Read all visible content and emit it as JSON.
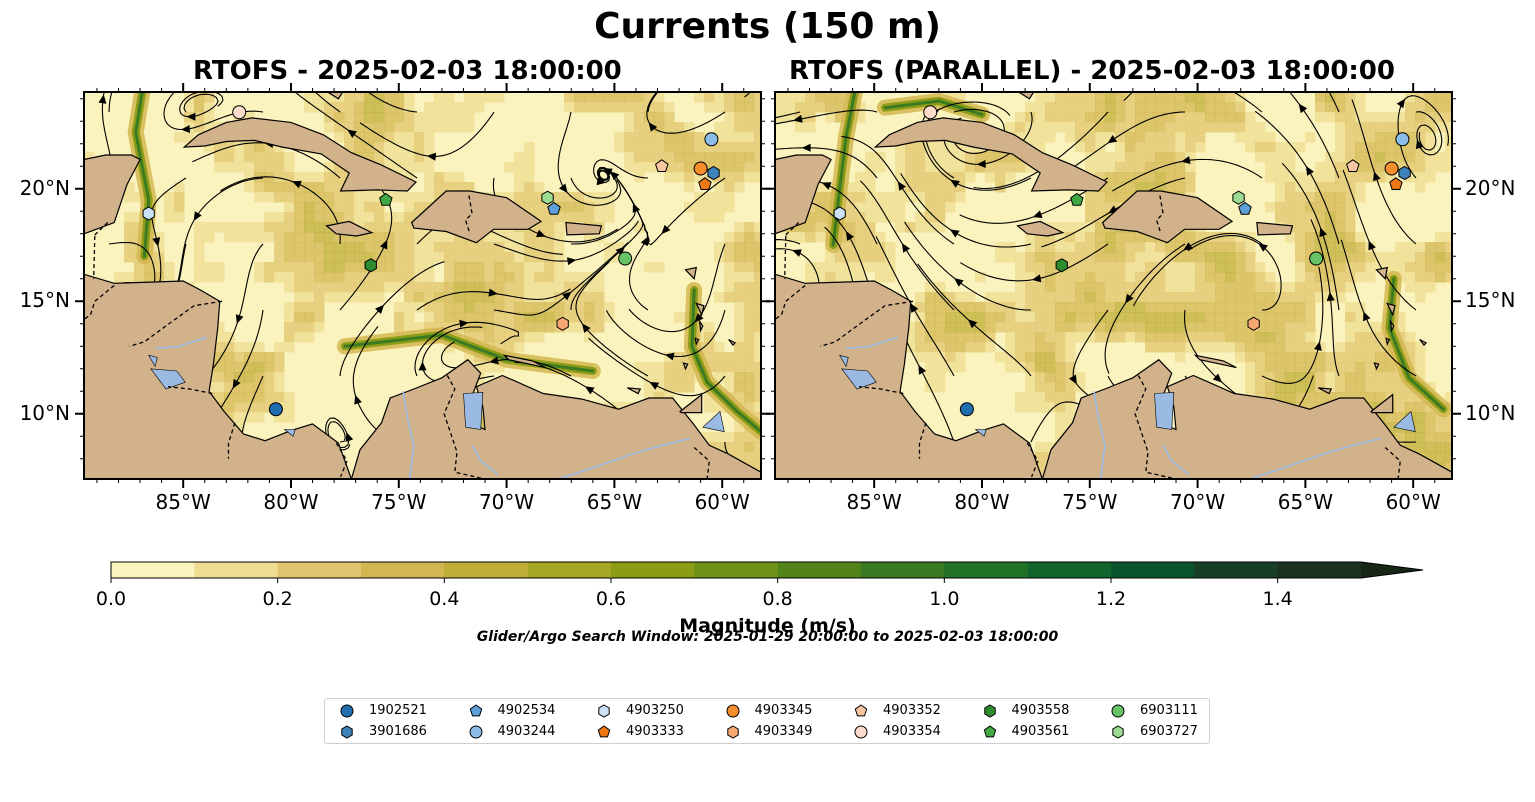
{
  "title": "Currents (150 m)",
  "panels": [
    {
      "subtitle": "RTOFS - 2025-02-03 18:00:00"
    },
    {
      "subtitle": "RTOFS (PARALLEL) - 2025-02-03 18:00:00"
    }
  ],
  "lon_ticks": [
    "85°W",
    "80°W",
    "75°W",
    "70°W",
    "65°W",
    "60°W"
  ],
  "lat_ticks": [
    "20°N",
    "15°N",
    "10°N"
  ],
  "colorbar": {
    "label": "Magnitude (m/s)",
    "ticks": [
      "0.0",
      "0.2",
      "0.4",
      "0.6",
      "0.8",
      "1.0",
      "1.2",
      "1.4"
    ],
    "range": [
      0,
      1.5
    ],
    "colors": [
      "#faf3bd",
      "#eedd92",
      "#e0c56e",
      "#d2b650",
      "#bfae38",
      "#a6a625",
      "#8c9c16",
      "#6f9116",
      "#528419",
      "#3a7a22",
      "#217126",
      "#0f652c",
      "#0a552b",
      "#173e26",
      "#1b3220",
      "#172617"
    ]
  },
  "search_window": "Glider/Argo Search Window: 2025-01-29 20:00:00 to 2025-02-03 18:00:00",
  "colors": {
    "land": "#d2b28b",
    "water": "#9ab9e3",
    "current_low": "#faf3bd"
  },
  "legend": [
    {
      "id": "1902521",
      "marker": "circle",
      "color": "#1f6fb0"
    },
    {
      "id": "3901686",
      "marker": "hexagon",
      "color": "#3d82b8"
    },
    {
      "id": "4902534",
      "marker": "pentagon",
      "color": "#5d9fd6"
    },
    {
      "id": "4903244",
      "marker": "circle",
      "color": "#8cbde9"
    },
    {
      "id": "4903250",
      "marker": "hexagon",
      "color": "#cbe2f6"
    },
    {
      "id": "4903333",
      "marker": "pentagon",
      "color": "#f07814"
    },
    {
      "id": "4903345",
      "marker": "circle",
      "color": "#f58d2c"
    },
    {
      "id": "4903349",
      "marker": "hexagon",
      "color": "#f7a872"
    },
    {
      "id": "4903352",
      "marker": "pentagon",
      "color": "#f9c6a2"
    },
    {
      "id": "4903354",
      "marker": "circle",
      "color": "#fcdccb"
    },
    {
      "id": "4903558",
      "marker": "hexagon",
      "color": "#2e8b2e"
    },
    {
      "id": "4903561",
      "marker": "pentagon",
      "color": "#41a843"
    },
    {
      "id": "6903111",
      "marker": "circle",
      "color": "#66c466"
    },
    {
      "id": "6903727",
      "marker": "hexagon",
      "color": "#9ddc93"
    }
  ],
  "positions": [
    {
      "id": "1902521",
      "lon": -80.7,
      "lat": 10.2
    },
    {
      "id": "3901686",
      "lon": -60.4,
      "lat": 20.7
    },
    {
      "id": "4902534",
      "lon": -67.8,
      "lat": 19.1
    },
    {
      "id": "4903244",
      "lon": -60.5,
      "lat": 22.2
    },
    {
      "id": "4903250",
      "lon": -86.6,
      "lat": 18.9
    },
    {
      "id": "4903333",
      "lon": -60.8,
      "lat": 20.2
    },
    {
      "id": "4903345",
      "lon": -61.0,
      "lat": 20.9
    },
    {
      "id": "4903349",
      "lon": -67.4,
      "lat": 14.0
    },
    {
      "id": "4903352",
      "lon": -62.8,
      "lat": 21.0
    },
    {
      "id": "4903354",
      "lon": -82.4,
      "lat": 23.4
    },
    {
      "id": "4903558",
      "lon": -76.3,
      "lat": 16.6
    },
    {
      "id": "4903561",
      "lon": -75.6,
      "lat": 19.5
    },
    {
      "id": "6903111",
      "lon": -64.5,
      "lat": 16.9
    },
    {
      "id": "6903727",
      "lon": -68.1,
      "lat": 19.6
    }
  ]
}
